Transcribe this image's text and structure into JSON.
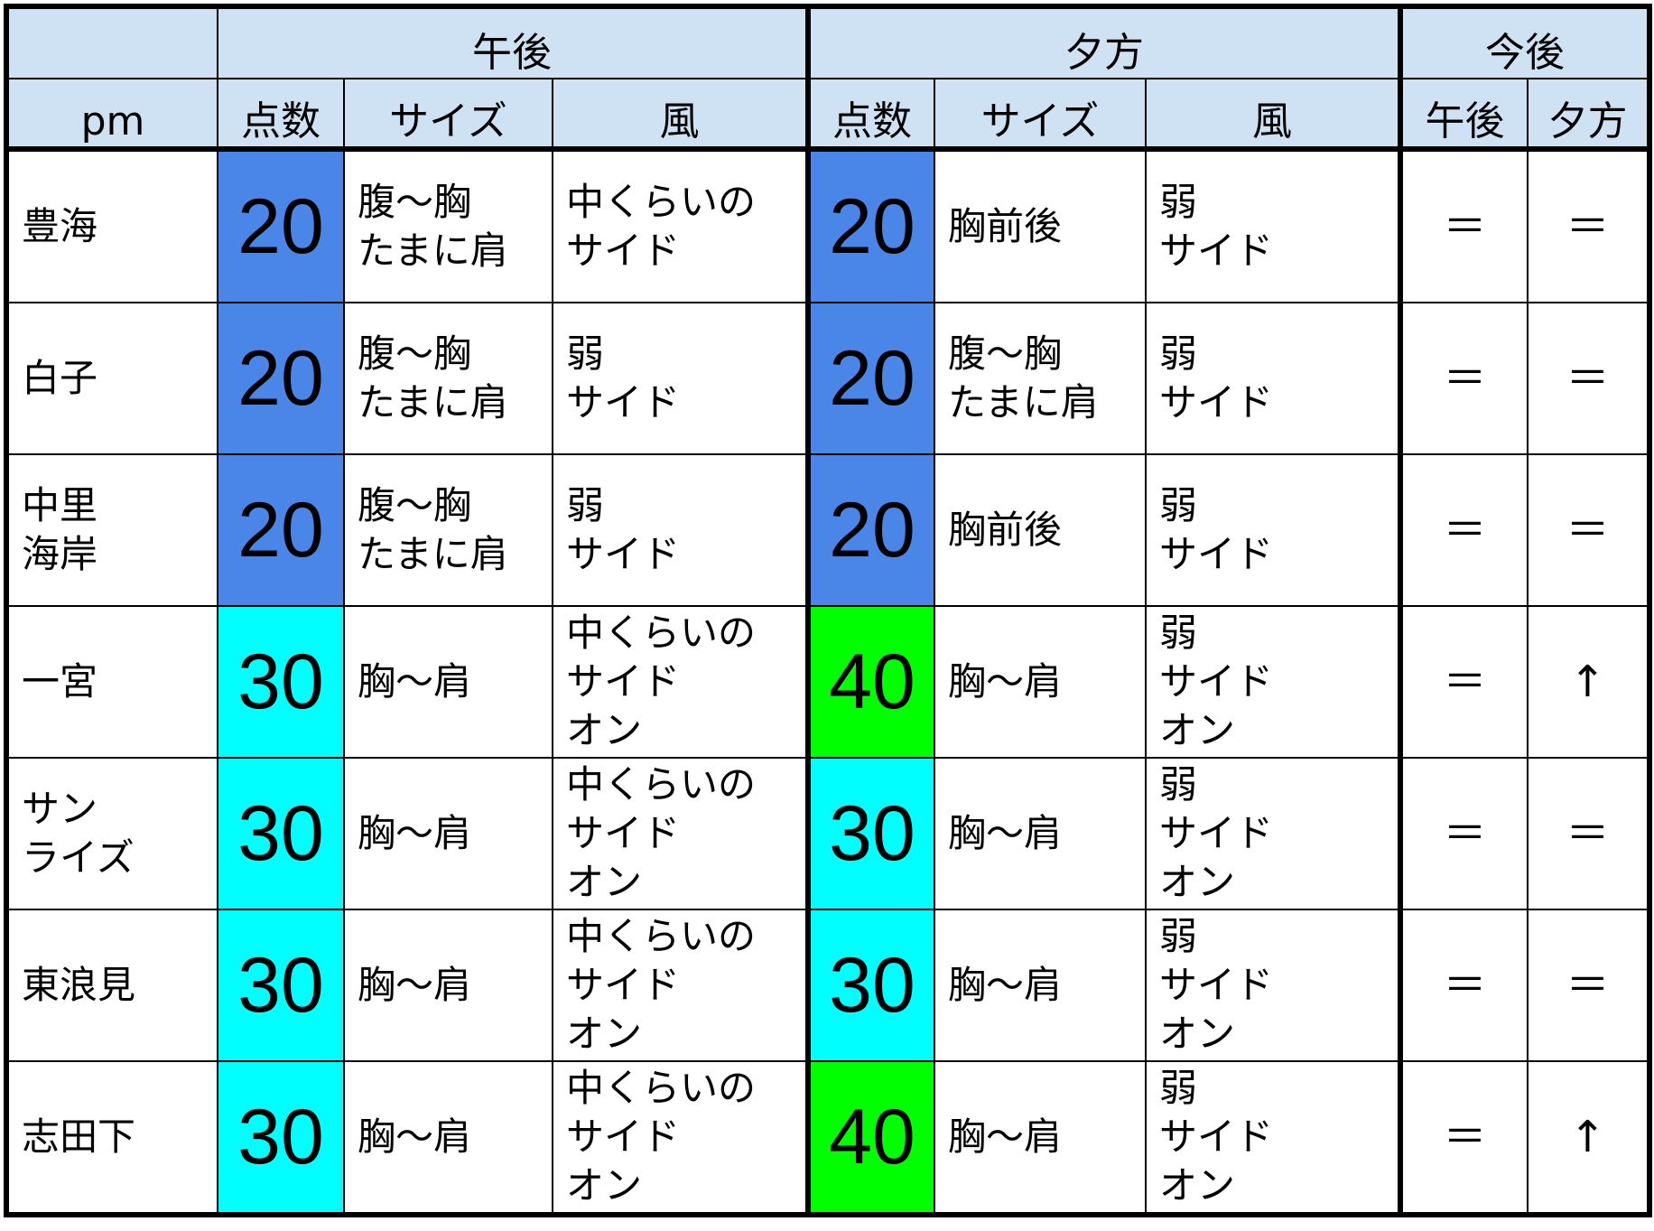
{
  "header": {
    "corner": "pm",
    "groups": [
      "午後",
      "夕方",
      "今後"
    ],
    "cols": {
      "score": "点数",
      "size": "サイズ",
      "wind": "風"
    },
    "outlook_cols": [
      "午後",
      "夕方"
    ]
  },
  "colors": {
    "header": "#cfe2f3",
    "20": "#4a86e8",
    "30": "#00ffff",
    "40": "#00ff00"
  },
  "rows": [
    {
      "spot": "豊海",
      "pm": {
        "score": "20",
        "size": "腹～胸\nたまに肩",
        "wind": "中くらいの\nサイド"
      },
      "ev": {
        "score": "20",
        "size": "胸前後",
        "wind": "弱\nサイド"
      },
      "trend": [
        "＝",
        "＝"
      ]
    },
    {
      "spot": "白子",
      "pm": {
        "score": "20",
        "size": "腹～胸\nたまに肩",
        "wind": "弱\nサイド"
      },
      "ev": {
        "score": "20",
        "size": "腹～胸\nたまに肩",
        "wind": "弱\nサイド"
      },
      "trend": [
        "＝",
        "＝"
      ]
    },
    {
      "spot": "中里\n海岸",
      "pm": {
        "score": "20",
        "size": "腹～胸\nたまに肩",
        "wind": "弱\nサイド"
      },
      "ev": {
        "score": "20",
        "size": "胸前後",
        "wind": "弱\nサイド"
      },
      "trend": [
        "＝",
        "＝"
      ]
    },
    {
      "spot": "一宮",
      "pm": {
        "score": "30",
        "size": "胸～肩",
        "wind": "中くらいの\nサイド\nオン"
      },
      "ev": {
        "score": "40",
        "size": "胸～肩",
        "wind": "弱\nサイド\nオン"
      },
      "trend": [
        "＝",
        "↑"
      ]
    },
    {
      "spot": "サン\nライズ",
      "pm": {
        "score": "30",
        "size": "胸～肩",
        "wind": "中くらいの\nサイド\nオン"
      },
      "ev": {
        "score": "30",
        "size": "胸～肩",
        "wind": "弱\nサイド\nオン"
      },
      "trend": [
        "＝",
        "＝"
      ]
    },
    {
      "spot": "東浪見",
      "pm": {
        "score": "30",
        "size": "胸～肩",
        "wind": "中くらいの\nサイド\nオン"
      },
      "ev": {
        "score": "30",
        "size": "胸～肩",
        "wind": "弱\nサイド\nオン"
      },
      "trend": [
        "＝",
        "＝"
      ]
    },
    {
      "spot": "志田下",
      "pm": {
        "score": "30",
        "size": "胸～肩",
        "wind": "中くらいの\nサイド\nオン"
      },
      "ev": {
        "score": "40",
        "size": "胸～肩",
        "wind": "弱\nサイド\nオン"
      },
      "trend": [
        "＝",
        "↑"
      ]
    }
  ]
}
